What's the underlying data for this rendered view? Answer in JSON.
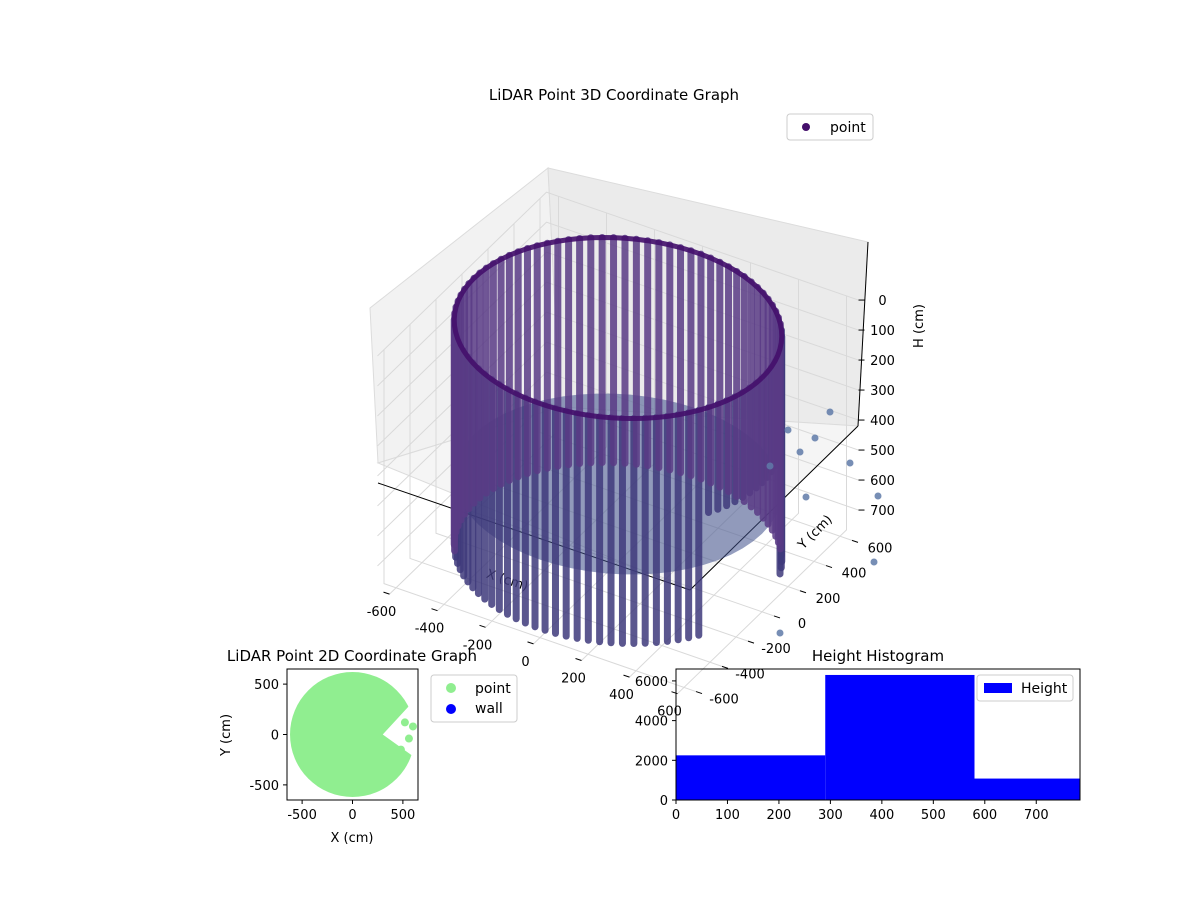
{
  "chart_data": [
    {
      "type": "scatter",
      "title": "LiDAR Point 3D Coordinate Graph",
      "xlabel": "X (cm)",
      "ylabel": "Y (cm)",
      "zlabel": "H (cm)",
      "projection": "3d",
      "z_inverted": true,
      "xticks": [
        -600,
        -400,
        -200,
        0,
        200,
        400,
        600
      ],
      "yticks": [
        -600,
        -400,
        -200,
        0,
        200,
        400,
        600
      ],
      "zticks": [
        0,
        100,
        200,
        300,
        400,
        500,
        600,
        700
      ],
      "xlim": [
        -650,
        650
      ],
      "ylim": [
        -650,
        650
      ],
      "zlim": [
        780,
        0
      ],
      "legend": {
        "placement": "top-right",
        "entries": [
          "point"
        ]
      },
      "series": [
        {
          "name": "point",
          "color": "#440f6b"
        }
      ],
      "wall": {
        "radius": 600,
        "h_top": 0,
        "h_bottom": 750
      },
      "grid": true
    },
    {
      "type": "scatter",
      "title": "LiDAR Point 2D Coordinate Graph",
      "xlabel": "X (cm)",
      "ylabel": "Y (cm)",
      "xticks": [
        -500,
        0,
        500
      ],
      "yticks": [
        -500,
        0,
        500
      ],
      "xlim": [
        -650,
        650
      ],
      "ylim": [
        -650,
        650
      ],
      "legend": {
        "placement": "outside-right",
        "entries": [
          "point",
          "wall"
        ]
      },
      "series": [
        {
          "name": "point",
          "color": "#90ee90"
        },
        {
          "name": "wall",
          "color": "#0000ff"
        }
      ],
      "disk_radius": 620
    },
    {
      "type": "bar",
      "title": "Height Histogram",
      "xticks": [
        0,
        100,
        200,
        300,
        400,
        500,
        600,
        700
      ],
      "yticks": [
        0,
        2000,
        4000,
        6000
      ],
      "xlim": [
        0,
        785
      ],
      "ylim": [
        0,
        6600
      ],
      "bins": [
        {
          "x0": 0,
          "x1": 290,
          "value": 2250
        },
        {
          "x0": 290,
          "x1": 580,
          "value": 6300
        },
        {
          "x0": 580,
          "x1": 785,
          "value": 1080
        }
      ],
      "legend": {
        "placement": "top-right",
        "entries": [
          "Height"
        ]
      },
      "series": [
        {
          "name": "Height",
          "color": "#0000ff"
        }
      ]
    }
  ]
}
